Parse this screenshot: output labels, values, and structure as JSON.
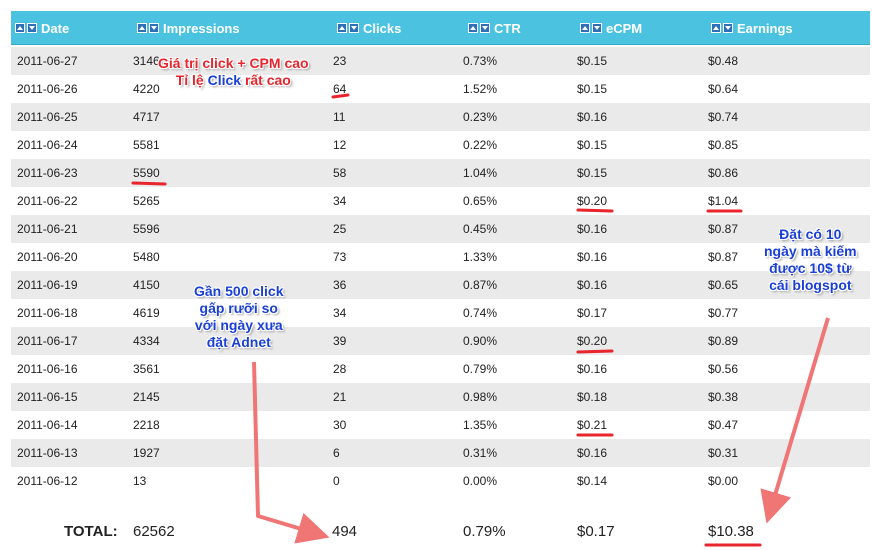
{
  "columns": {
    "date": "Date",
    "impressions": "Impressions",
    "clicks": "Clicks",
    "ctr": "CTR",
    "ecpm": "eCPM",
    "earnings": "Earnings"
  },
  "rows": [
    {
      "date": "2011-06-27",
      "impressions": "3146",
      "clicks": "23",
      "ctr": "0.73%",
      "ecpm": "$0.15",
      "earnings": "$0.48"
    },
    {
      "date": "2011-06-26",
      "impressions": "4220",
      "clicks": "64",
      "ctr": "1.52%",
      "ecpm": "$0.15",
      "earnings": "$0.64"
    },
    {
      "date": "2011-06-25",
      "impressions": "4717",
      "clicks": "11",
      "ctr": "0.23%",
      "ecpm": "$0.16",
      "earnings": "$0.74"
    },
    {
      "date": "2011-06-24",
      "impressions": "5581",
      "clicks": "12",
      "ctr": "0.22%",
      "ecpm": "$0.15",
      "earnings": "$0.85"
    },
    {
      "date": "2011-06-23",
      "impressions": "5590",
      "clicks": "58",
      "ctr": "1.04%",
      "ecpm": "$0.15",
      "earnings": "$0.86"
    },
    {
      "date": "2011-06-22",
      "impressions": "5265",
      "clicks": "34",
      "ctr": "0.65%",
      "ecpm": "$0.20",
      "earnings": "$1.04"
    },
    {
      "date": "2011-06-21",
      "impressions": "5596",
      "clicks": "25",
      "ctr": "0.45%",
      "ecpm": "$0.16",
      "earnings": "$0.87"
    },
    {
      "date": "2011-06-20",
      "impressions": "5480",
      "clicks": "73",
      "ctr": "1.33%",
      "ecpm": "$0.16",
      "earnings": "$0.87"
    },
    {
      "date": "2011-06-19",
      "impressions": "4150",
      "clicks": "36",
      "ctr": "0.87%",
      "ecpm": "$0.16",
      "earnings": "$0.65"
    },
    {
      "date": "2011-06-18",
      "impressions": "4619",
      "clicks": "34",
      "ctr": "0.74%",
      "ecpm": "$0.17",
      "earnings": "$0.77"
    },
    {
      "date": "2011-06-17",
      "impressions": "4334",
      "clicks": "39",
      "ctr": "0.90%",
      "ecpm": "$0.20",
      "earnings": "$0.89"
    },
    {
      "date": "2011-06-16",
      "impressions": "3561",
      "clicks": "28",
      "ctr": "0.79%",
      "ecpm": "$0.16",
      "earnings": "$0.56"
    },
    {
      "date": "2011-06-15",
      "impressions": "2145",
      "clicks": "21",
      "ctr": "0.98%",
      "ecpm": "$0.18",
      "earnings": "$0.38"
    },
    {
      "date": "2011-06-14",
      "impressions": "2218",
      "clicks": "30",
      "ctr": "1.35%",
      "ecpm": "$0.21",
      "earnings": "$0.47"
    },
    {
      "date": "2011-06-13",
      "impressions": "1927",
      "clicks": "6",
      "ctr": "0.31%",
      "ecpm": "$0.16",
      "earnings": "$0.31"
    },
    {
      "date": "2011-06-12",
      "impressions": "13",
      "clicks": "0",
      "ctr": "0.00%",
      "ecpm": "$0.14",
      "earnings": "$0.00"
    }
  ],
  "total": {
    "label": "TOTAL:",
    "impressions": "62562",
    "clicks": "494",
    "ctr": "0.79%",
    "ecpm": "$0.17",
    "earnings": "$10.38"
  },
  "annotations": {
    "top_line1": "Giá trị click + CPM cao",
    "top_line2a": "Tỉ lệ ",
    "top_line2b": "Click",
    "top_line2c": " rất cao",
    "mid_line1": "Gần 500 click",
    "mid_line2": "gấp rưỡi so",
    "mid_line3": "với ngày xưa",
    "mid_line4": "đặt Adnet",
    "right_line1": "Đặt có 10",
    "right_line2": "ngày mà kiếm",
    "right_line3": "được 10$ từ",
    "right_line4": "cái blogspot"
  },
  "colors": {
    "header_bg": "#4bc2e0",
    "row_alt": "#eaeaea",
    "annotation_red": "#e8242c",
    "annotation_blue": "#1a3fd6",
    "arrow": "#f07575"
  },
  "icons": {
    "sort_up": "sort-up-icon",
    "sort_down": "sort-down-icon"
  }
}
